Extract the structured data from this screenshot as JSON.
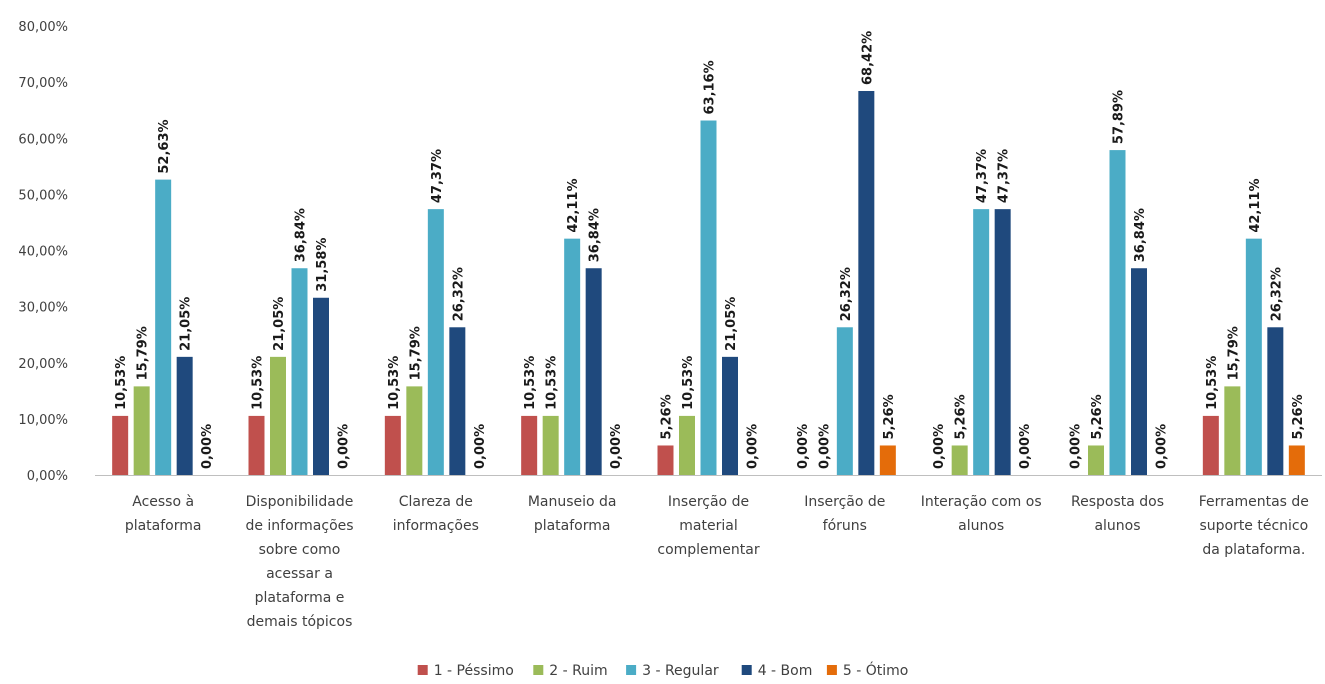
{
  "chart_data": {
    "type": "bar",
    "title": "",
    "xlabel": "",
    "ylabel": "",
    "ylim": [
      0,
      80
    ],
    "y_ticks": [
      "0,00%",
      "10,00%",
      "20,00%",
      "30,00%",
      "40,00%",
      "50,00%",
      "60,00%",
      "70,00%",
      "80,00%"
    ],
    "grid": false,
    "legend_position": "bottom",
    "categories": [
      [
        "Acesso à",
        "plataforma"
      ],
      [
        "Disponibilidade",
        "de informações",
        "sobre como",
        "acessar a",
        "plataforma e",
        "demais tópicos"
      ],
      [
        "Clareza de",
        "informações"
      ],
      [
        "Manuseio da",
        "plataforma"
      ],
      [
        "Inserção de",
        "material",
        "complementar"
      ],
      [
        "Inserção de",
        "fóruns"
      ],
      [
        "Interação com os",
        "alunos"
      ],
      [
        "Resposta dos",
        "alunos"
      ],
      [
        "Ferramentas de",
        "suporte técnico",
        "da plataforma."
      ]
    ],
    "series": [
      {
        "name": "1 - Péssimo",
        "color": "#C0504D",
        "values": [
          10.53,
          10.53,
          10.53,
          10.53,
          5.26,
          0.0,
          0.0,
          0.0,
          10.53
        ],
        "labels": [
          "10,53%",
          "10,53%",
          "10,53%",
          "10,53%",
          "5,26%",
          "0,00%",
          "0,00%",
          "0,00%",
          "10,53%"
        ]
      },
      {
        "name": "2 - Ruim",
        "color": "#9BBB59",
        "values": [
          15.79,
          21.05,
          15.79,
          10.53,
          10.53,
          0.0,
          5.26,
          5.26,
          15.79
        ],
        "labels": [
          "15,79%",
          "21,05%",
          "15,79%",
          "10,53%",
          "10,53%",
          "0,00%",
          "5,26%",
          "5,26%",
          "15,79%"
        ]
      },
      {
        "name": "3 - Regular",
        "color": "#4BACC6",
        "values": [
          52.63,
          36.84,
          47.37,
          42.11,
          63.16,
          26.32,
          47.37,
          57.89,
          42.11
        ],
        "labels": [
          "52,63%",
          "36,84%",
          "47,37%",
          "42,11%",
          "63,16%",
          "26,32%",
          "47,37%",
          "57,89%",
          "42,11%"
        ]
      },
      {
        "name": "4 - Bom",
        "color": "#1F497D",
        "values": [
          21.05,
          31.58,
          26.32,
          36.84,
          21.05,
          68.42,
          47.37,
          36.84,
          26.32
        ],
        "labels": [
          "21,05%",
          "31,58%",
          "26,32%",
          "36,84%",
          "21,05%",
          "68,42%",
          "47,37%",
          "36,84%",
          "26,32%"
        ]
      },
      {
        "name": "5 - Ótimo",
        "color": "#E46C0A",
        "values": [
          0.0,
          0.0,
          0.0,
          0.0,
          0.0,
          5.26,
          0.0,
          0.0,
          5.26
        ],
        "labels": [
          "0,00%",
          "0,00%",
          "0,00%",
          "0,00%",
          "0,00%",
          "5,26%",
          "0,00%",
          "0,00%",
          "5,26%"
        ]
      }
    ]
  }
}
